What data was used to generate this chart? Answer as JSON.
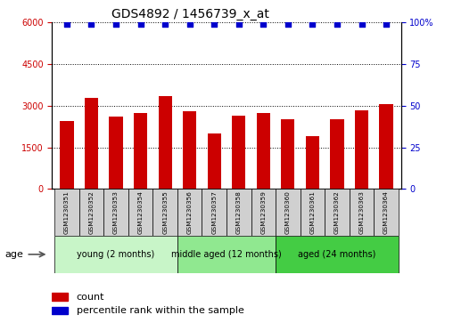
{
  "title": "GDS4892 / 1456739_x_at",
  "samples": [
    "GSM1230351",
    "GSM1230352",
    "GSM1230353",
    "GSM1230354",
    "GSM1230355",
    "GSM1230356",
    "GSM1230357",
    "GSM1230358",
    "GSM1230359",
    "GSM1230360",
    "GSM1230361",
    "GSM1230362",
    "GSM1230363",
    "GSM1230364"
  ],
  "counts": [
    2450,
    3300,
    2600,
    2750,
    3350,
    2800,
    2000,
    2650,
    2750,
    2500,
    1900,
    2500,
    2850,
    3050
  ],
  "percentile_ranks": [
    99,
    99,
    99,
    99,
    99,
    99,
    99,
    99,
    99,
    99,
    99,
    99,
    99,
    99
  ],
  "bar_color": "#cc0000",
  "dot_color": "#0000cc",
  "ylim_left": [
    0,
    6000
  ],
  "ylim_right": [
    0,
    100
  ],
  "yticks_left": [
    0,
    1500,
    3000,
    4500,
    6000
  ],
  "yticks_right": [
    0,
    25,
    50,
    75,
    100
  ],
  "groups": [
    {
      "label": "young (2 months)",
      "start": 0,
      "end": 5,
      "color": "#c8f5c8"
    },
    {
      "label": "middle aged (12 months)",
      "start": 5,
      "end": 9,
      "color": "#90e890"
    },
    {
      "label": "aged (24 months)",
      "start": 9,
      "end": 14,
      "color": "#44cc44"
    }
  ],
  "age_label": "age",
  "legend_count_label": "count",
  "legend_pct_label": "percentile rank within the sample",
  "background_color": "#ffffff",
  "plot_bg_color": "#ffffff",
  "title_fontsize": 10,
  "tick_label_fontsize": 7,
  "group_fontsize": 7,
  "legend_fontsize": 8,
  "sample_box_color": "#d0d0d0"
}
